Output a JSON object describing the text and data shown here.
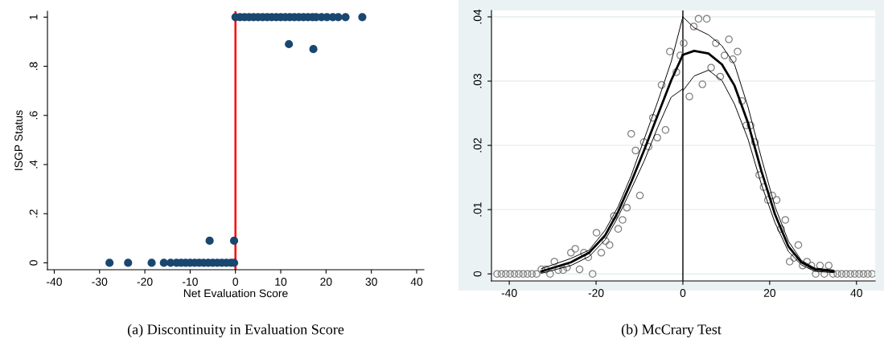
{
  "chart_data": [
    {
      "type": "scatter",
      "title": "(a) Discontinuity in Evaluation Score",
      "xlabel": "Net Evaluation Score",
      "ylabel": "ISGP Status",
      "xlim": [
        -41.5,
        41.6
      ],
      "ylim": [
        -0.028,
        1.024
      ],
      "xticks": [
        -40,
        -30,
        -20,
        -10,
        0,
        10,
        20,
        30,
        40
      ],
      "yticks": [
        0,
        {
          "value": 0.2,
          "label": ".2"
        },
        {
          "value": 0.4,
          "label": ".4"
        },
        {
          "value": 0.6,
          "label": ".6"
        },
        {
          "value": 0.8,
          "label": ".8"
        },
        1
      ],
      "marker": "circle",
      "grid": false,
      "series": [
        {
          "color": "#1a476f",
          "x": [
            0,
            1,
            2,
            3,
            4,
            5,
            6,
            7,
            8,
            9,
            10,
            11,
            12,
            13,
            14,
            15,
            16,
            17,
            17.8,
            19,
            20.2,
            21.5,
            22.7,
            24.3,
            28,
            11.8,
            17.2
          ],
          "values": [
            1,
            1,
            1,
            1,
            1,
            1,
            1,
            1,
            1,
            1,
            1,
            1,
            1,
            1,
            1,
            1,
            1,
            1,
            1,
            1,
            1,
            1,
            1,
            1,
            1,
            0.89,
            0.87
          ]
        },
        {
          "color": "#1a476f",
          "x": [
            -27.8,
            -23.7,
            -18.5,
            -15.8,
            -14.3,
            -13,
            -12,
            -11,
            -10,
            -9,
            -8,
            -7,
            -6,
            -5,
            -4,
            -3,
            -2,
            -1,
            -0.3,
            -5.7,
            -0.3
          ],
          "values": [
            0,
            0,
            0,
            0,
            0,
            0,
            0,
            0,
            0,
            0,
            0,
            0,
            0,
            0,
            0,
            0,
            0,
            0,
            0,
            0.09,
            0.09
          ]
        }
      ],
      "ref_lines": [
        {
          "axis": "x",
          "value": 0,
          "color": "#ff0000"
        }
      ]
    },
    {
      "type": "scatter",
      "title": "(b) McCrary Test",
      "xlim": [
        -44.1,
        44.3
      ],
      "ylim": [
        -0.0011,
        0.041
      ],
      "xticks": [
        -40,
        -20,
        0,
        20,
        40
      ],
      "yticks": [
        0,
        {
          "value": 0.01,
          "label": ".01"
        },
        {
          "value": 0.02,
          "label": ".02"
        },
        {
          "value": 0.03,
          "label": ".03"
        },
        {
          "value": 0.04,
          "label": ".04"
        }
      ],
      "grid": "y",
      "series": [
        {
          "color": "#808080",
          "marker": "circle",
          "x": [
            -42.8,
            -41.8,
            -40.8,
            -39.8,
            -38.8,
            -37.8,
            -36.8,
            -35.8,
            -34.8,
            -33.7,
            -32.6,
            -31.6,
            -30.6,
            -29.6,
            -28.7,
            -27.6,
            -26.7,
            -25.8,
            -24.8,
            -23.8,
            -22.8,
            -21.8,
            -20.8,
            -19.9,
            -18.8,
            -17.8,
            -16.9,
            -15.9,
            -14.9,
            -13.9,
            -12.9,
            -11.9,
            -10.9,
            -9.9,
            -9.0,
            -7.9,
            -6.9,
            -5.9,
            -4.9,
            -4.0,
            -3.0,
            -1.5,
            -0.6,
            0.2,
            1.5,
            2.5,
            3.6,
            4.5,
            5.5,
            6.5,
            7.6,
            8.6,
            9.6,
            10.6,
            11.5,
            12.6,
            13.6,
            14.6,
            15.6,
            16.6,
            17.6,
            18.6,
            19.6,
            20.6,
            21.6,
            22.6,
            23.6,
            24.6,
            25.6,
            26.6,
            27.6,
            28.6,
            29.6,
            30.6,
            31.6,
            32.6,
            33.6,
            34.6,
            35.6,
            36.6,
            37.6,
            38.6,
            39.6,
            40.6,
            41.6,
            42.6,
            43.6
          ],
          "values": [
            0,
            0,
            0,
            0,
            0,
            0,
            0,
            0,
            0,
            0,
            0.0007,
            0.0007,
            0,
            0.0019,
            0.0006,
            0.0006,
            0.001,
            0.0033,
            0.0039,
            0.0007,
            0.0033,
            0.0026,
            0,
            0.0064,
            0.0033,
            0.0051,
            0.0045,
            0.009,
            0.007,
            0.0084,
            0.0103,
            0.0218,
            0.0192,
            0.0122,
            0.0205,
            0.0198,
            0.0243,
            0.0212,
            0.0294,
            0.0224,
            0.0346,
            0.0314,
            0.034,
            0.0359,
            0.0276,
            0.0385,
            0.0397,
            0.0295,
            0.0397,
            0.0321,
            0.0359,
            0.0307,
            0.034,
            0.0365,
            0.0334,
            0.0346,
            0.0269,
            0.0231,
            0.0231,
            0.0205,
            0.0154,
            0.0135,
            0.0115,
            0.0122,
            0.0115,
            0.007,
            0.0084,
            0.0019,
            0.0025,
            0.0045,
            0.0013,
            0.0019,
            0.0013,
            0,
            0.0013,
            0,
            0.0013,
            0,
            0,
            0,
            0,
            0,
            0,
            0,
            0,
            0,
            0
          ]
        },
        {
          "type": "line",
          "marker": "none",
          "color": "#000000",
          "x": [
            -32.6,
            -25.8,
            -21.6,
            -17.9,
            -14.9,
            -11.9,
            -8.9,
            -5.8,
            -2.7,
            0
          ],
          "values": [
            0.0004,
            0.0018,
            0.0033,
            0.006,
            0.0097,
            0.0143,
            0.0193,
            0.0247,
            0.0301,
            0.0341
          ]
        },
        {
          "type": "line",
          "marker": "none",
          "color": "#000000",
          "x": [
            -32.6,
            -25.8,
            -21.6,
            -17.9,
            -14.9,
            -11.9,
            -8.9,
            -5.8,
            -2.7,
            0
          ],
          "values": [
            0.0001,
            0.0013,
            0.0027,
            0.0053,
            0.0089,
            0.0132,
            0.0176,
            0.0228,
            0.0275,
            0.0288
          ]
        },
        {
          "type": "line",
          "marker": "none",
          "color": "#000000",
          "x": [
            -32.6,
            -25.8,
            -21.6,
            -17.9,
            -14.9,
            -11.9,
            -8.9,
            -5.8,
            -2.7,
            0
          ],
          "values": [
            0.0008,
            0.0024,
            0.0037,
            0.0068,
            0.0105,
            0.0153,
            0.021,
            0.0268,
            0.033,
            0.04
          ]
        },
        {
          "type": "line",
          "marker": "none",
          "color": "#000000",
          "x": [
            0,
            2.6,
            5.9,
            9.0,
            11.9,
            15.0,
            18.1,
            21.2,
            24.3,
            27.3,
            30.4,
            34.7
          ],
          "values": [
            0.0341,
            0.0347,
            0.0343,
            0.0326,
            0.0293,
            0.0235,
            0.016,
            0.0093,
            0.0043,
            0.0018,
            0.0007,
            0.0004
          ]
        },
        {
          "type": "line",
          "marker": "none",
          "color": "#000000",
          "x": [
            0,
            2.6,
            5.9,
            9.0,
            11.9,
            15.0,
            18.1,
            21.2,
            24.3,
            27.3,
            30.4,
            34.7
          ],
          "values": [
            0.0285,
            0.0308,
            0.0317,
            0.0301,
            0.0264,
            0.021,
            0.0139,
            0.008,
            0.0035,
            0.0014,
            0.0004,
            0.0002
          ]
        },
        {
          "type": "line",
          "marker": "none",
          "color": "#000000",
          "x": [
            0,
            2.6,
            5.9,
            9.0,
            11.9,
            15.0,
            18.1,
            21.2,
            24.3,
            27.3,
            30.4,
            34.7
          ],
          "values": [
            0.04,
            0.0383,
            0.0372,
            0.0355,
            0.0326,
            0.026,
            0.018,
            0.0105,
            0.0051,
            0.0021,
            0.0009,
            0.0006
          ]
        }
      ],
      "ref_lines": [
        {
          "axis": "x",
          "value": 0,
          "color": "#000000"
        }
      ]
    }
  ]
}
